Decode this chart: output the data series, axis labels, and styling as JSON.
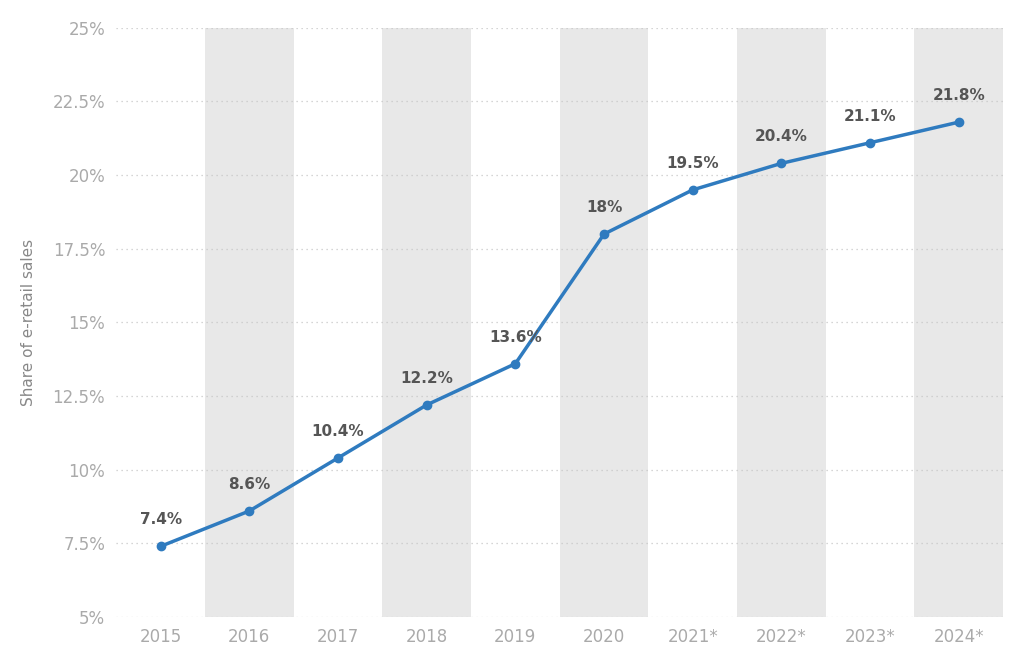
{
  "years": [
    "2015",
    "2016",
    "2017",
    "2018",
    "2019",
    "2020",
    "2021*",
    "2022*",
    "2023*",
    "2024*"
  ],
  "values": [
    7.4,
    8.6,
    10.4,
    12.2,
    13.6,
    18.0,
    19.5,
    20.4,
    21.1,
    21.8
  ],
  "labels": [
    "7.4%",
    "8.6%",
    "10.4%",
    "12.2%",
    "13.6%",
    "18%",
    "19.5%",
    "20.4%",
    "21.1%",
    "21.8%"
  ],
  "ylabel": "Share of e-retail sales",
  "line_color": "#2f7bbf",
  "marker_color": "#2f7bbf",
  "fig_bg_color": "#ffffff",
  "plot_bg_color": "#ffffff",
  "band_color": "#e8e8e8",
  "grid_color": "#c8c8c8",
  "tick_label_color": "#aaaaaa",
  "data_label_color": "#555555",
  "ylabel_color": "#888888",
  "ylim_min": 5.0,
  "ylim_max": 25.0,
  "yticks": [
    5.0,
    7.5,
    10.0,
    12.5,
    15.0,
    17.5,
    20.0,
    22.5,
    25.0
  ],
  "ytick_labels": [
    "5%",
    "7.5%",
    "10%",
    "12.5%",
    "15%",
    "17.5%",
    "20%",
    "22.5%",
    "25%"
  ],
  "label_offsets_y": [
    0.65,
    0.65,
    0.65,
    0.65,
    0.65,
    0.65,
    0.65,
    0.65,
    0.65,
    0.65
  ]
}
